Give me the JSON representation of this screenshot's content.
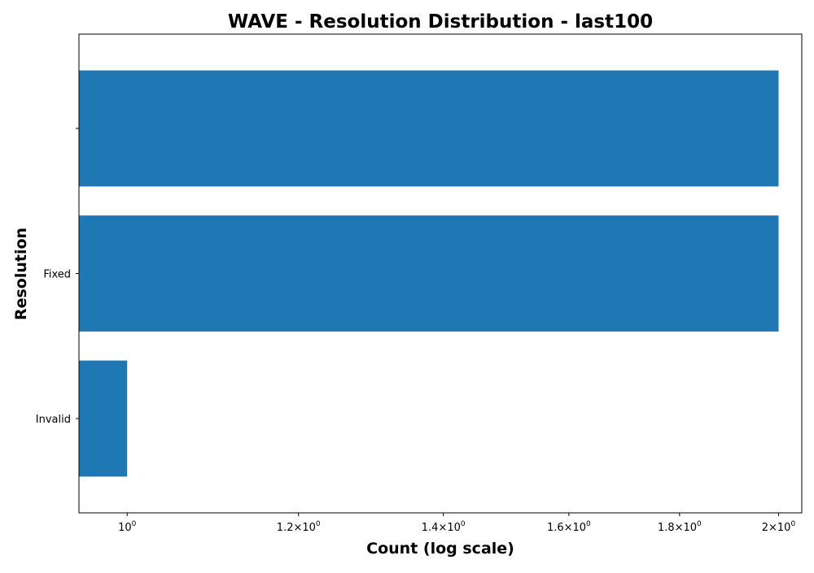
{
  "chart_data": {
    "type": "bar",
    "orientation": "horizontal",
    "title": "WAVE - Resolution Distribution - last100",
    "xlabel": "Count (log scale)",
    "ylabel": "Resolution",
    "x_scale": "log",
    "xlim": [
      0.95,
      2.05
    ],
    "x_ticks": [
      {
        "value": 1.0,
        "mantissa": "",
        "exp": "0"
      },
      {
        "value": 1.2,
        "mantissa": "1.2",
        "exp": "0"
      },
      {
        "value": 1.4,
        "mantissa": "1.4",
        "exp": "0"
      },
      {
        "value": 1.6,
        "mantissa": "1.6",
        "exp": "0"
      },
      {
        "value": 1.8,
        "mantissa": "1.8",
        "exp": "0"
      },
      {
        "value": 2.0,
        "mantissa": "2",
        "exp": "0"
      }
    ],
    "categories": [
      "Invalid",
      "Fixed",
      ""
    ],
    "values": [
      1,
      2,
      2
    ],
    "colors": {
      "bar": "#1f77b4",
      "axis": "#000000",
      "background": "#ffffff"
    },
    "grid": false,
    "legend": "none"
  }
}
